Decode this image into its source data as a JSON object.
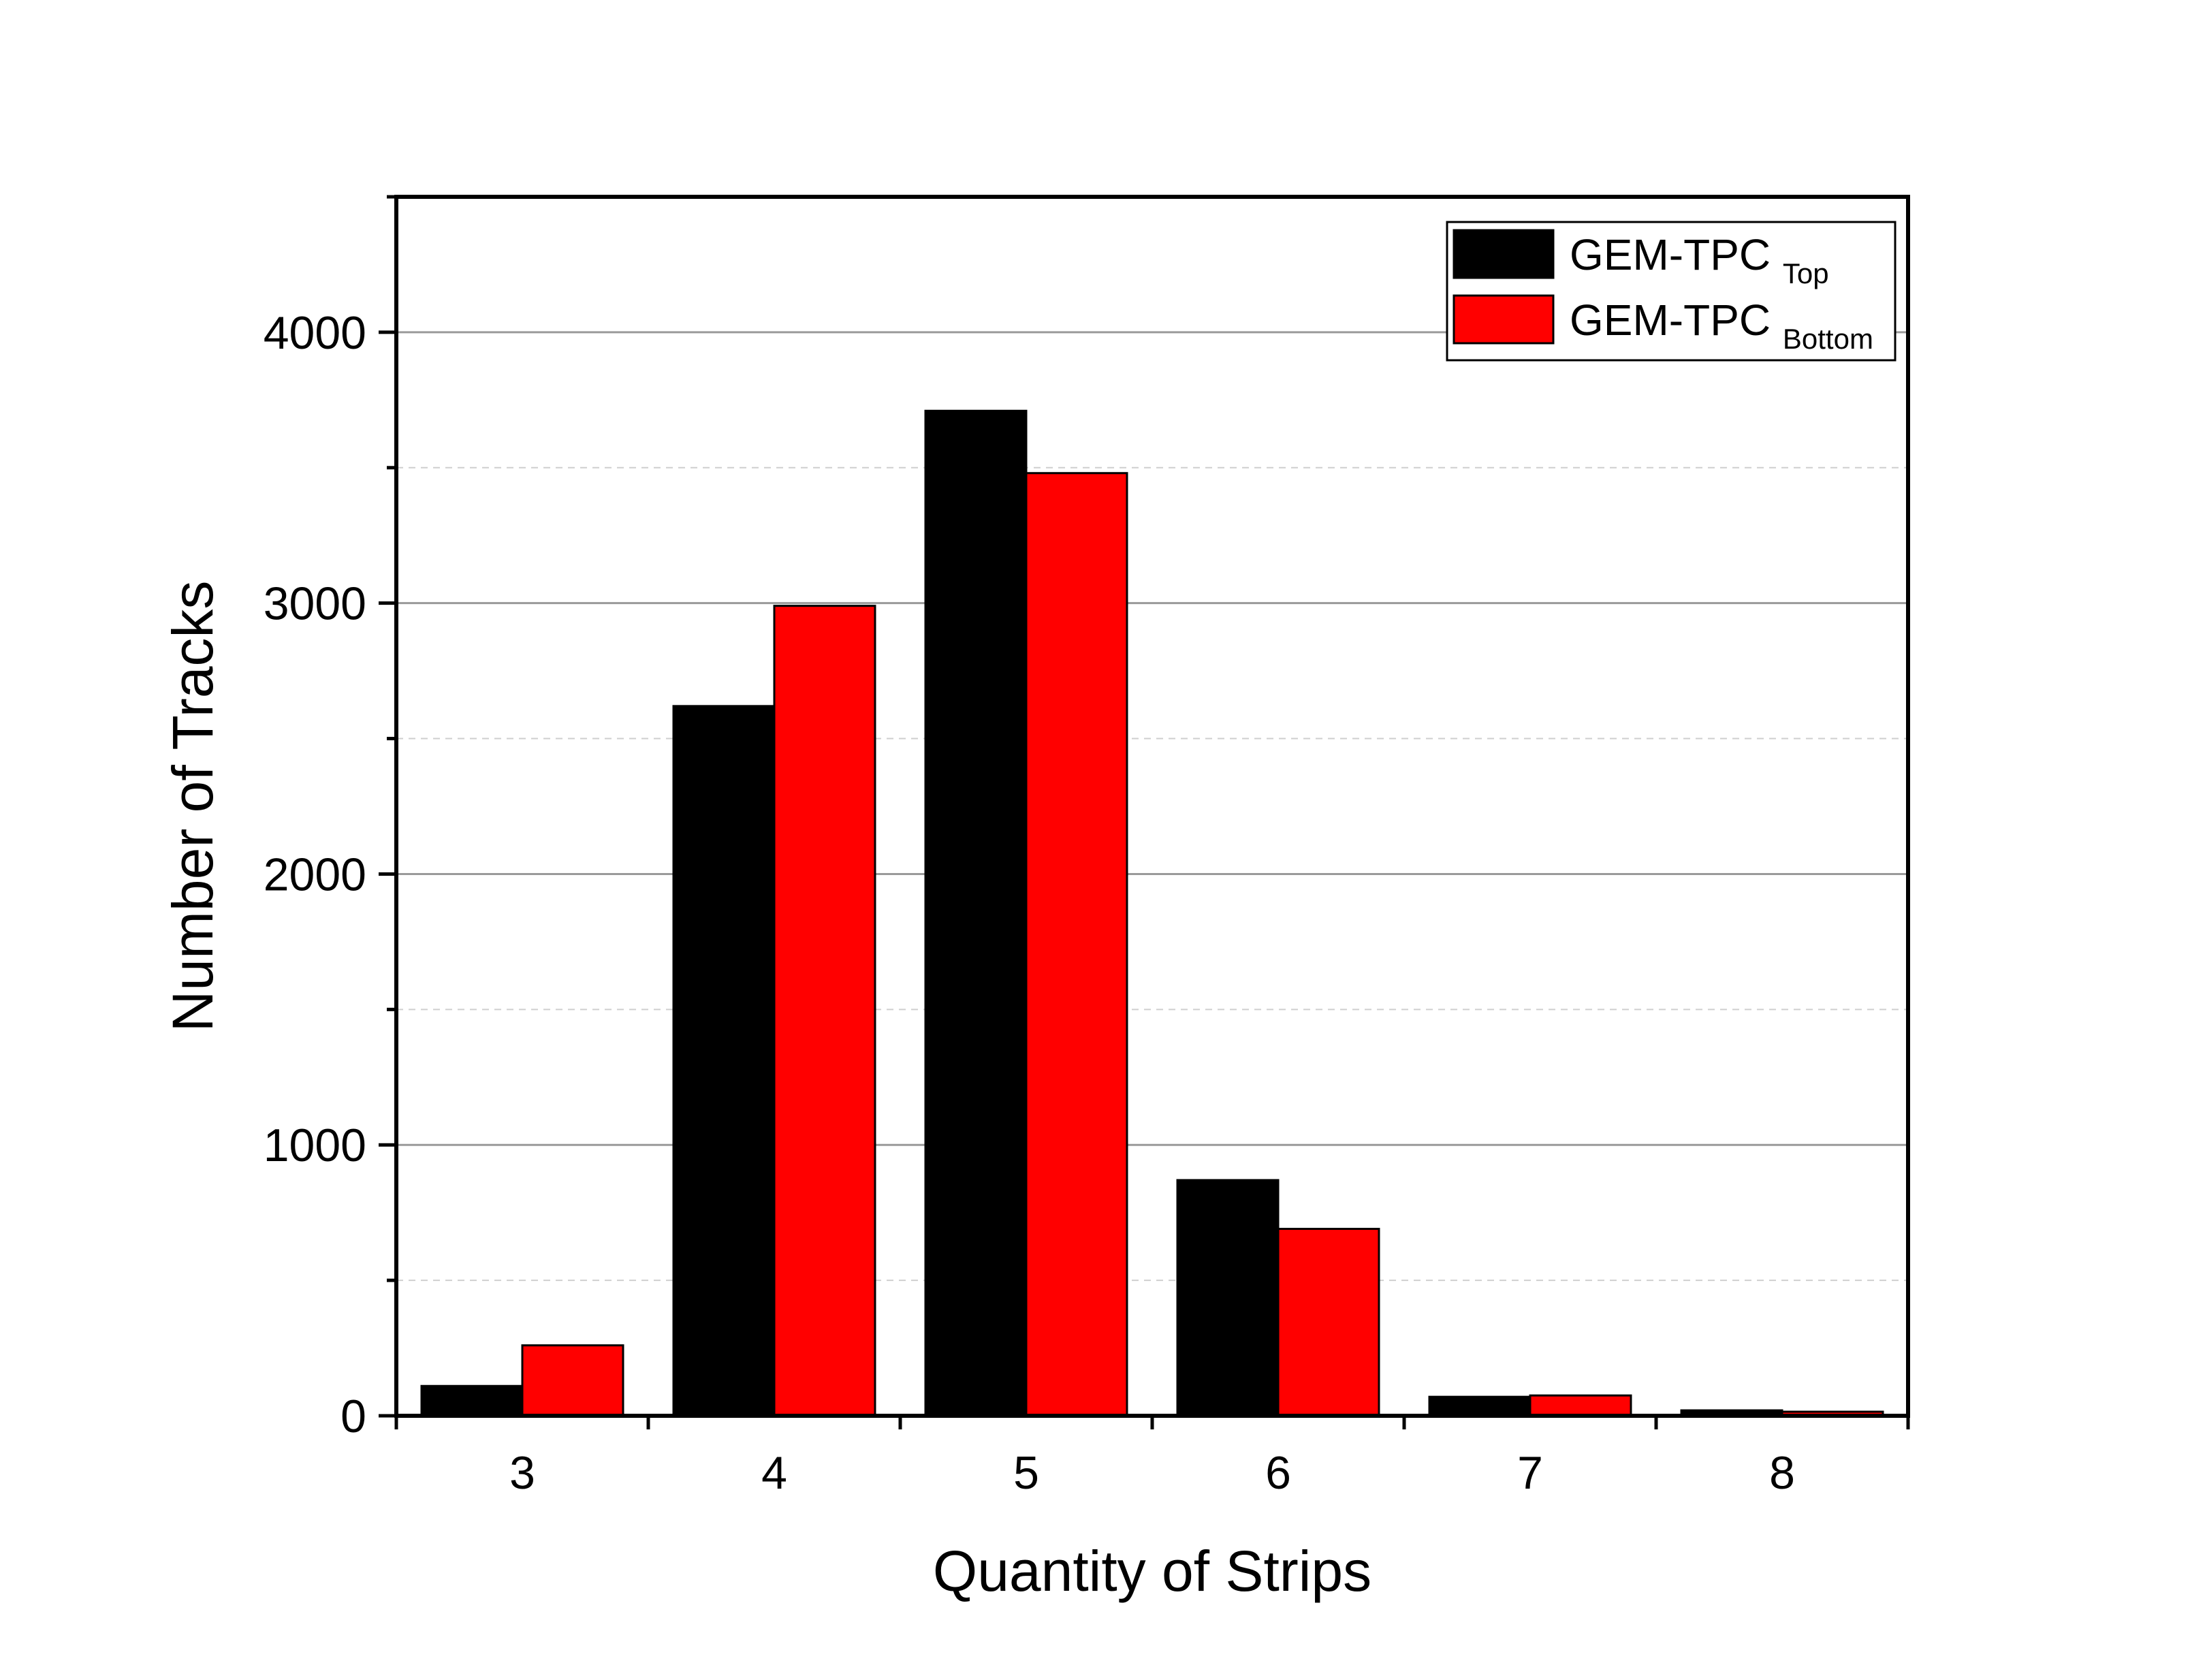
{
  "chart_data": {
    "type": "bar",
    "xlabel": "Quantity of Strips",
    "ylabel": "Number of Tracks",
    "categories": [
      "3",
      "4",
      "5",
      "6",
      "7",
      "8"
    ],
    "ylim": [
      0,
      4500
    ],
    "y_ticks": [
      "0",
      "1000",
      "2000",
      "3000",
      "4000"
    ],
    "grid": true,
    "legend_position": "top-right",
    "series": [
      {
        "name": "GEM-TPC",
        "name_subscript": "Top",
        "color": "#000000",
        "values": [
          110,
          2620,
          3710,
          870,
          70,
          20
        ]
      },
      {
        "name": "GEM-TPC",
        "name_subscript": "Bottom",
        "color": "#ff0000",
        "values": [
          260,
          2990,
          3480,
          690,
          75,
          15
        ]
      }
    ]
  }
}
